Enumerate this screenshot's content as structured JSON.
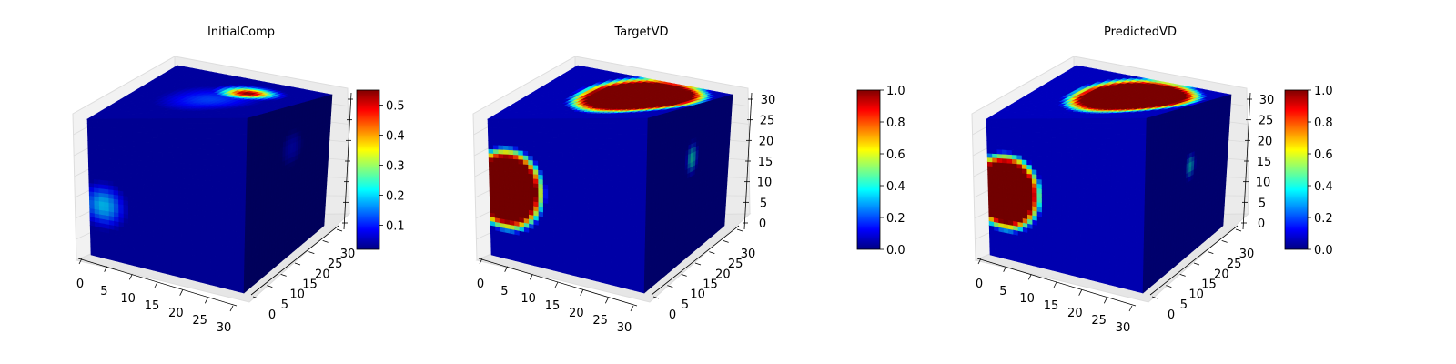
{
  "chart_data": [
    {
      "type": "heatmap",
      "title": "InitialComp",
      "xlabel": "",
      "ylabel": "",
      "zlabel": "",
      "x_ticks": [
        "0",
        "5",
        "10",
        "15",
        "20",
        "25",
        "30"
      ],
      "y_ticks": [
        "0",
        "5",
        "10",
        "15",
        "20",
        "25",
        "30"
      ],
      "z_ticks": [],
      "xlim": [
        0,
        32
      ],
      "ylim": [
        0,
        32
      ],
      "zlim": [
        0,
        32
      ],
      "colorbar": {
        "min": 0.02,
        "max": 0.55,
        "ticks": [
          "0.1",
          "0.2",
          "0.3",
          "0.4",
          "0.5"
        ],
        "tick_values": [
          0.1,
          0.2,
          0.3,
          0.4,
          0.5
        ]
      },
      "colormap": "jet",
      "base_value": 0.04,
      "blobs": [
        {
          "face": "front",
          "u": 0.09,
          "v": 0.38,
          "ru": 0.2,
          "rv": 0.22,
          "peak": 0.19
        },
        {
          "face": "top",
          "u": 0.62,
          "v": 0.72,
          "ru": 0.22,
          "rv": 0.17,
          "peak": 0.55
        },
        {
          "face": "top",
          "u": 0.5,
          "v": 0.5,
          "ru": 0.45,
          "rv": 0.42,
          "peak": 0.12
        },
        {
          "face": "right",
          "u": 0.55,
          "v": 0.72,
          "ru": 0.22,
          "rv": 0.2,
          "peak": 0.09
        }
      ]
    },
    {
      "type": "heatmap",
      "title": "TargetVD",
      "xlabel": "",
      "ylabel": "",
      "zlabel": "",
      "x_ticks": [
        "0",
        "5",
        "10",
        "15",
        "20",
        "25",
        "30"
      ],
      "y_ticks": [
        "0",
        "5",
        "10",
        "15",
        "20",
        "25",
        "30"
      ],
      "z_ticks": [
        "0",
        "5",
        "10",
        "15",
        "20",
        "25",
        "30"
      ],
      "xlim": [
        0,
        32
      ],
      "ylim": [
        0,
        32
      ],
      "zlim": [
        0,
        32
      ],
      "colorbar": {
        "min": 0.0,
        "max": 1.0,
        "ticks": [
          "0.0",
          "0.2",
          "0.4",
          "0.6",
          "0.8",
          "1.0"
        ],
        "tick_values": [
          0.0,
          0.2,
          0.4,
          0.6,
          0.8,
          1.0
        ]
      },
      "colormap": "jet",
      "base_value": 0.06,
      "blobs": [
        {
          "face": "front",
          "u": 0.11,
          "v": 0.5,
          "ru": 0.26,
          "rv": 0.32,
          "peak": 1.0,
          "flat": true
        },
        {
          "face": "top",
          "u": 0.62,
          "v": 0.62,
          "ru": 0.4,
          "rv": 0.48,
          "peak": 1.0,
          "flat": true
        },
        {
          "face": "right",
          "u": 0.55,
          "v": 0.65,
          "ru": 0.09,
          "rv": 0.14,
          "peak": 0.4
        }
      ]
    },
    {
      "type": "heatmap",
      "title": "PredictedVD",
      "xlabel": "",
      "ylabel": "",
      "zlabel": "",
      "x_ticks": [
        "0",
        "5",
        "10",
        "15",
        "20",
        "25",
        "30"
      ],
      "y_ticks": [
        "0",
        "5",
        "10",
        "15",
        "20",
        "25",
        "30"
      ],
      "z_ticks": [
        "0",
        "5",
        "10",
        "15",
        "20",
        "25",
        "30"
      ],
      "xlim": [
        0,
        32
      ],
      "ylim": [
        0,
        32
      ],
      "zlim": [
        0,
        32
      ],
      "colorbar": {
        "min": 0.0,
        "max": 1.0,
        "ticks": [
          "0.0",
          "0.2",
          "0.4",
          "0.6",
          "0.8",
          "1.0"
        ],
        "tick_values": [
          0.0,
          0.2,
          0.4,
          0.6,
          0.8,
          1.0
        ]
      },
      "colormap": "jet",
      "base_value": 0.07,
      "blobs": [
        {
          "face": "front",
          "u": 0.11,
          "v": 0.48,
          "ru": 0.25,
          "rv": 0.3,
          "peak": 1.0,
          "flat": true
        },
        {
          "face": "top",
          "u": 0.6,
          "v": 0.6,
          "ru": 0.4,
          "rv": 0.46,
          "peak": 1.0,
          "flat": true
        },
        {
          "face": "right",
          "u": 0.55,
          "v": 0.6,
          "ru": 0.08,
          "rv": 0.12,
          "peak": 0.35
        }
      ]
    }
  ]
}
